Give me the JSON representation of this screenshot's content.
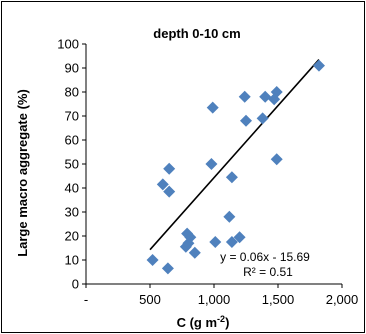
{
  "chart_data": {
    "type": "scatter",
    "title": "depth 0-10 cm",
    "xlabel": "C (g m",
    "xlabel_superscript": "-2",
    "xlabel_close": ")",
    "ylabel": "Large  macro aggregate (%)",
    "xlim": [
      0,
      2000
    ],
    "ylim": [
      0,
      100
    ],
    "x_ticks": [
      0,
      500,
      1000,
      1500,
      2000
    ],
    "x_tick_labels": [
      "-",
      "500",
      "1,000",
      "1,500",
      "2,000"
    ],
    "y_ticks": [
      0,
      10,
      20,
      30,
      40,
      50,
      60,
      70,
      80,
      90,
      100
    ],
    "y_tick_labels": [
      "0",
      "10",
      "20",
      "30",
      "40",
      "50",
      "60",
      "70",
      "80",
      "90",
      "100"
    ],
    "grid": false,
    "marker_color": "#4F81BD",
    "line_color": "#000000",
    "trendline": {
      "slope": 0.06,
      "intercept": -15.69,
      "x_range": [
        500,
        1820
      ]
    },
    "equation_text": "y = 0.06x - 15.69",
    "r2_text": "R² = 0.51",
    "points": [
      [
        520,
        10
      ],
      [
        640,
        6.5
      ],
      [
        600,
        41.5
      ],
      [
        650,
        38.5
      ],
      [
        650,
        48
      ],
      [
        780,
        15.5
      ],
      [
        790,
        21
      ],
      [
        800,
        17
      ],
      [
        815,
        19.5
      ],
      [
        850,
        13
      ],
      [
        980,
        50
      ],
      [
        990,
        73.5
      ],
      [
        1010,
        17.5
      ],
      [
        1120,
        28
      ],
      [
        1140,
        44.5
      ],
      [
        1140,
        17.5
      ],
      [
        1200,
        19.5
      ],
      [
        1240,
        78
      ],
      [
        1250,
        68
      ],
      [
        1380,
        69
      ],
      [
        1400,
        78
      ],
      [
        1470,
        77
      ],
      [
        1490,
        80
      ],
      [
        1490,
        52
      ],
      [
        1820,
        91
      ]
    ]
  }
}
